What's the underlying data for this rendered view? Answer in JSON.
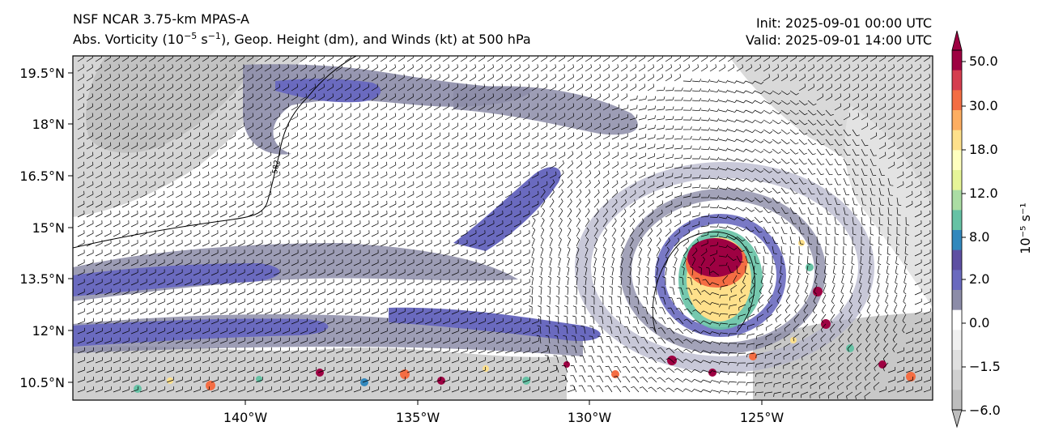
{
  "header": {
    "model_title": "NSF NCAR 3.75-km MPAS-A",
    "subtitle_pre": "Abs. Vorticity (10",
    "subtitle_exp1": "−5",
    "subtitle_mid": " s",
    "subtitle_exp2": "−1",
    "subtitle_post": "), Geop. Height (dm), and Winds (kt) at 500 hPa",
    "init": "Init: 2025-09-01 00:00 UTC",
    "valid": "Valid: 2025-09-01 14:00 UTC"
  },
  "map": {
    "lat_ticks": [
      "19.5°N",
      "18°N",
      "16.5°N",
      "15°N",
      "13.5°N",
      "12°N",
      "10.5°N"
    ],
    "lon_ticks": [
      "140°W",
      "135°W",
      "130°W",
      "125°W"
    ],
    "contour_label": "582",
    "colors": {
      "neg_strong": "#bdbdbd",
      "neg_light": "#e6e6e6",
      "zero": "#ffffff",
      "grey_purple": "#8c8ca8",
      "purple": "#6a6abf",
      "blue": "#3a8fc4",
      "teal": "#66c2a5",
      "yellow": "#fee08b",
      "orange": "#f46d43",
      "red": "#9e0142"
    }
  },
  "colorbar": {
    "tick_labels": [
      "50.0",
      "30.0",
      "18.0",
      "12.0",
      "8.0",
      "2.0",
      "0.0",
      "−1.5",
      "−6.0"
    ],
    "label": "10⁻⁵ s⁻¹",
    "colors_top_to_bottom": [
      "#9e0142",
      "#d53e4f",
      "#f46d43",
      "#fdae61",
      "#fee08b",
      "#ffffbf",
      "#e6f598",
      "#abdda4",
      "#66c2a5",
      "#3288bd",
      "#5e4fa2",
      "#6a6abf",
      "#8c8ca8",
      "#ffffff",
      "#f0f0f0",
      "#e0e0e0",
      "#d0d0d0",
      "#bdbdbd"
    ]
  }
}
